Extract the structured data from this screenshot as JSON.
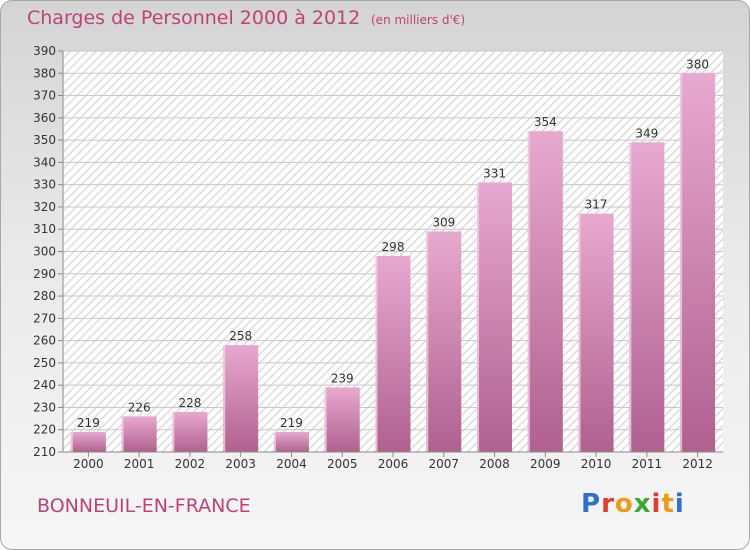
{
  "header": {
    "title": "Charges de Personnel 2000 à 2012",
    "subtitle": "(en milliers d'€)"
  },
  "footer": {
    "commune": "BONNEUIL-EN-FRANCE",
    "logo_text": "Proxiti",
    "logo_icon": "proxiti-logo",
    "logo_colors": [
      "#2f6fd1",
      "#e43b2c",
      "#f09a1a",
      "#3aa935",
      "#e43b2c",
      "#f09a1a",
      "#2f6fd1"
    ]
  },
  "colors": {
    "bar_top": "#e7a9cf",
    "bar_bottom": "#b0618f",
    "text": "#c0407a",
    "label": "#333333"
  },
  "chart_data": {
    "type": "bar",
    "title": "Charges de Personnel 2000 à 2012",
    "subtitle": "(en milliers d'€)",
    "categories": [
      "2000",
      "2001",
      "2002",
      "2003",
      "2004",
      "2005",
      "2006",
      "2007",
      "2008",
      "2009",
      "2010",
      "2011",
      "2012"
    ],
    "values": [
      219,
      226,
      228,
      258,
      219,
      239,
      298,
      309,
      331,
      354,
      317,
      349,
      380
    ],
    "ylim": [
      210,
      390
    ],
    "yticks": [
      210,
      220,
      230,
      240,
      250,
      260,
      270,
      280,
      290,
      300,
      310,
      320,
      330,
      340,
      350,
      360,
      370,
      380,
      390
    ],
    "grid": true,
    "xlabel": "",
    "ylabel": ""
  }
}
